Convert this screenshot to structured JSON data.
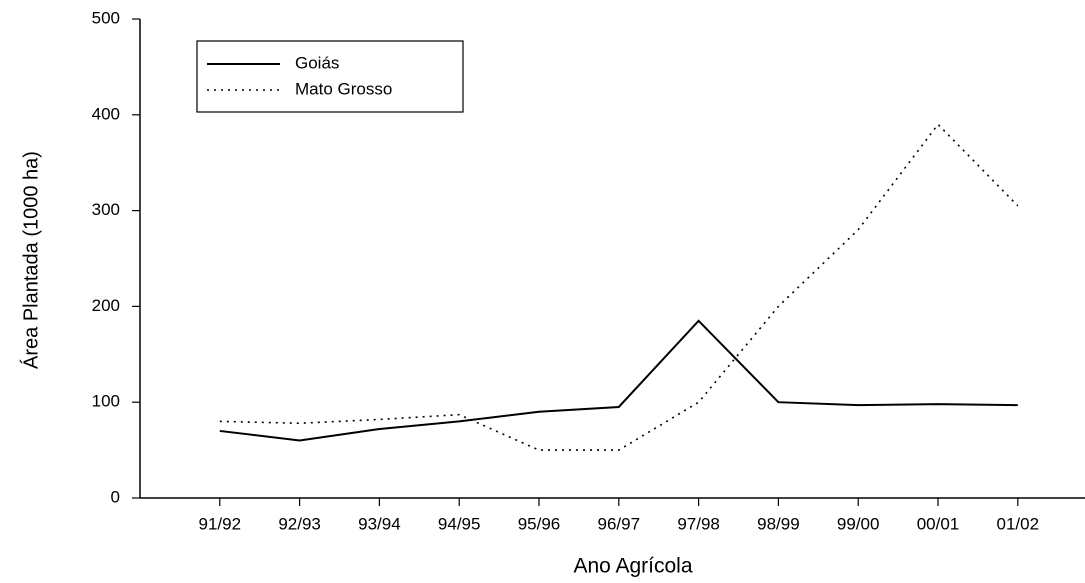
{
  "chart_data": {
    "type": "line",
    "x_label": "Ano Agrícola",
    "y_label": "Área Plantada (1000 ha)",
    "categories": [
      "91/92",
      "92/93",
      "93/94",
      "94/95",
      "95/96",
      "96/97",
      "97/98",
      "98/99",
      "99/00",
      "00/01",
      "01/02"
    ],
    "series": [
      {
        "name": "Goiás",
        "color": "#000000",
        "style": "solid",
        "values": [
          70,
          60,
          72,
          80,
          90,
          95,
          185,
          100,
          97,
          98,
          97
        ]
      },
      {
        "name": "Mato Grosso",
        "color": "#000000",
        "style": "dotted",
        "values": [
          80,
          78,
          82,
          87,
          50,
          50,
          100,
          200,
          280,
          390,
          305
        ]
      }
    ],
    "ylim": [
      0,
      500
    ],
    "yticks": [
      0,
      100,
      200,
      300,
      400,
      500
    ],
    "legend": "upper left",
    "grid": false
  }
}
